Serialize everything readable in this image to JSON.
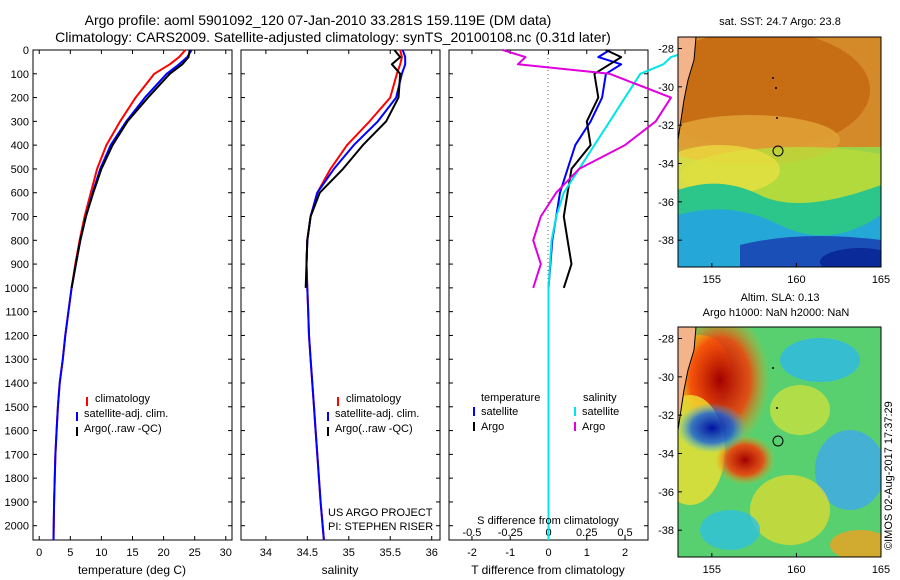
{
  "header": {
    "line1": "Argo profile: aoml 5901092_120 07-Jan-2010 33.281S 159.119E (DM data)",
    "line2": "Climatology: CARS2009. Satellite-adjusted climatology: synTS_20100108.nc (0.31d later)"
  },
  "colors": {
    "climatology": "#ff0000",
    "satellite": "#0000ff",
    "argo": "#000000",
    "salinity_sat": "#00e5e5",
    "salinity_argo": "#e000e0"
  },
  "chart_data": [
    {
      "type": "line",
      "title": "",
      "xlabel": "temperature (deg C)",
      "ylabel": "",
      "xlim": [
        -1,
        31
      ],
      "ylim": [
        2060,
        0
      ],
      "xticks": [
        0,
        5,
        10,
        15,
        20,
        25,
        30
      ],
      "yticks": [
        0,
        100,
        200,
        300,
        400,
        500,
        600,
        700,
        800,
        900,
        1000,
        1100,
        1200,
        1300,
        1400,
        1500,
        1600,
        1700,
        1800,
        1900,
        2000
      ],
      "legend": [
        "climatology",
        "satellite-adj. clim.",
        "Argo(..raw -QC)"
      ],
      "legend_position": "lower-middle",
      "series": [
        {
          "name": "climatology",
          "color": "#ff0000",
          "x": [
            23.5,
            22.5,
            21.0,
            18.5,
            15.5,
            13.0,
            10.8,
            9.3,
            8.3,
            7.3,
            6.5,
            5.8,
            5.2,
            4.7,
            4.2,
            3.8,
            3.3,
            3.0,
            2.8,
            2.6,
            2.4,
            2.3
          ],
          "y": [
            0,
            30,
            60,
            100,
            200,
            300,
            400,
            500,
            600,
            700,
            800,
            900,
            1000,
            1100,
            1200,
            1300,
            1400,
            1500,
            1600,
            1700,
            1900,
            2060
          ]
        },
        {
          "name": "satellite-adj. clim.",
          "color": "#0000ff",
          "x": [
            24.5,
            23.8,
            22.5,
            20.5,
            17.0,
            14.0,
            11.5,
            9.8,
            8.6,
            7.5,
            6.6,
            5.9,
            5.2,
            4.7,
            4.2,
            3.8,
            3.3,
            3.0,
            2.8,
            2.6,
            2.4,
            2.3
          ],
          "y": [
            0,
            30,
            60,
            100,
            200,
            300,
            400,
            500,
            600,
            700,
            800,
            900,
            1000,
            1100,
            1200,
            1300,
            1400,
            1500,
            1600,
            1700,
            1900,
            2060
          ]
        },
        {
          "name": "Argo(..raw -QC)",
          "color": "#000000",
          "x": [
            24.2,
            24.0,
            23.0,
            21.0,
            17.5,
            14.2,
            11.8,
            10.0,
            8.7,
            7.5,
            6.6,
            5.9,
            5.2
          ],
          "y": [
            0,
            30,
            60,
            100,
            200,
            300,
            400,
            500,
            600,
            700,
            800,
            900,
            1000
          ]
        }
      ]
    },
    {
      "type": "line",
      "title": "",
      "xlabel": "salinity",
      "ylabel": "",
      "xlim": [
        33.7,
        36.1
      ],
      "ylim": [
        2060,
        0
      ],
      "xticks": [
        34,
        34.5,
        35,
        35.5,
        36
      ],
      "xticklabels": [
        "34",
        "34.5",
        "35",
        "35.5",
        "36"
      ],
      "legend": [
        "climatology",
        "satellite-adj. clim.",
        "Argo(..raw -QC)"
      ],
      "legend_position": "lower-right",
      "annotations": [
        "US ARGO PROJECT",
        "PI: STEPHEN RISER"
      ],
      "series": [
        {
          "name": "climatology",
          "color": "#ff0000",
          "x": [
            35.62,
            35.64,
            35.62,
            35.58,
            35.5,
            35.25,
            34.98,
            34.78,
            34.62,
            34.54,
            34.5,
            34.49,
            34.5,
            34.51,
            34.52,
            34.54,
            34.56,
            34.58,
            34.6,
            34.62,
            34.66,
            34.7
          ],
          "y": [
            0,
            30,
            60,
            100,
            200,
            300,
            400,
            500,
            600,
            700,
            800,
            900,
            1000,
            1100,
            1200,
            1300,
            1400,
            1500,
            1600,
            1700,
            1900,
            2060
          ]
        },
        {
          "name": "satellite-adj. clim.",
          "color": "#0000ff",
          "x": [
            35.65,
            35.68,
            35.68,
            35.64,
            35.57,
            35.35,
            35.06,
            34.82,
            34.62,
            34.54,
            34.5,
            34.49,
            34.5,
            34.51,
            34.52,
            34.54,
            34.56,
            34.58,
            34.6,
            34.62,
            34.66,
            34.7
          ],
          "y": [
            0,
            30,
            60,
            100,
            200,
            300,
            400,
            500,
            600,
            700,
            800,
            900,
            1000,
            1100,
            1200,
            1300,
            1400,
            1500,
            1600,
            1700,
            1900,
            2060
          ]
        },
        {
          "name": "Argo(..raw -QC)",
          "color": "#000000",
          "x": [
            35.55,
            35.62,
            35.52,
            35.62,
            35.6,
            35.45,
            35.17,
            34.93,
            34.65,
            34.54,
            34.5,
            34.49,
            34.48
          ],
          "y": [
            0,
            30,
            60,
            100,
            200,
            300,
            400,
            500,
            600,
            700,
            800,
            900,
            1000
          ]
        }
      ]
    },
    {
      "type": "line",
      "title": "",
      "xlabel": "T difference from climatology",
      "xlabel_top": "S difference from climatology",
      "xlim": [
        -2.6,
        2.6
      ],
      "ylim": [
        2060,
        0
      ],
      "xticks": [
        -2,
        -1,
        0,
        1,
        2
      ],
      "xticks_top": [
        "-0.5",
        "-0.25",
        "0",
        "0.25",
        "0.5"
      ],
      "legend_left_title": "temperature",
      "legend_left": [
        "satellite",
        "Argo"
      ],
      "legend_right_title": "salinity",
      "legend_right": [
        "satellite",
        "Argo"
      ],
      "series": [
        {
          "name": "satellite",
          "group": "temperature",
          "color": "#0000ff",
          "x": [
            1.6,
            1.3,
            1.9,
            1.5,
            1.4,
            1.1,
            0.7,
            0.5,
            0.3,
            0.2,
            0.1,
            0.05,
            0,
            0,
            0,
            0,
            0,
            0,
            0,
            0,
            0,
            0
          ],
          "y": [
            0,
            30,
            60,
            100,
            200,
            300,
            400,
            500,
            600,
            700,
            800,
            900,
            1000,
            1100,
            1200,
            1300,
            1400,
            1500,
            1600,
            1700,
            1900,
            2060
          ]
        },
        {
          "name": "Argo",
          "group": "temperature",
          "color": "#000000",
          "x": [
            1.5,
            1.9,
            1.6,
            1.2,
            1.3,
            1.0,
            1.1,
            0.6,
            0.5,
            0.4,
            0.5,
            0.6,
            0.4
          ],
          "y": [
            0,
            30,
            60,
            100,
            200,
            300,
            400,
            500,
            600,
            700,
            800,
            900,
            1000
          ]
        },
        {
          "name": "satellite",
          "group": "salinity",
          "color": "#00e5e5",
          "x": [
            0.95,
            0.8,
            0.75,
            0.6,
            0.5,
            0.4,
            0.3,
            0.2,
            0.1,
            0.05,
            0.02,
            0.01,
            0,
            0,
            0,
            0,
            0,
            0,
            0,
            0,
            0,
            0
          ],
          "y": [
            0,
            30,
            60,
            100,
            200,
            300,
            400,
            500,
            600,
            700,
            800,
            900,
            1000,
            1100,
            1200,
            1300,
            1400,
            1500,
            1600,
            1700,
            1900,
            2060
          ]
        },
        {
          "name": "Argo",
          "group": "salinity",
          "color": "#e000e0",
          "x": [
            -0.3,
            -0.15,
            -0.2,
            0.4,
            0.8,
            0.7,
            0.5,
            0.2,
            0.05,
            -0.05,
            -0.1,
            -0.05,
            -0.1
          ],
          "y": [
            0,
            30,
            60,
            100,
            200,
            300,
            400,
            500,
            600,
            700,
            800,
            900,
            1000
          ]
        }
      ]
    },
    {
      "type": "heatmap",
      "title": "sat. SST: 24.7  Argo: 23.8",
      "xticks": [
        155,
        160,
        165
      ],
      "yticks": [
        -28,
        -30,
        -32,
        -34,
        -36,
        -38
      ],
      "marker_lon": 159.119,
      "marker_lat": -33.281
    },
    {
      "type": "heatmap",
      "title": "Altim. SLA: 0.13",
      "subtitle": "Argo h1000: NaN h2000: NaN",
      "xticks": [
        155,
        160,
        165
      ],
      "yticks": [
        -28,
        -30,
        -32,
        -34,
        -36,
        -38
      ],
      "marker_lon": 159.119,
      "marker_lat": -33.281
    }
  ],
  "footer_stamp": "©IMOS 02-Aug-2017 17:37:29"
}
